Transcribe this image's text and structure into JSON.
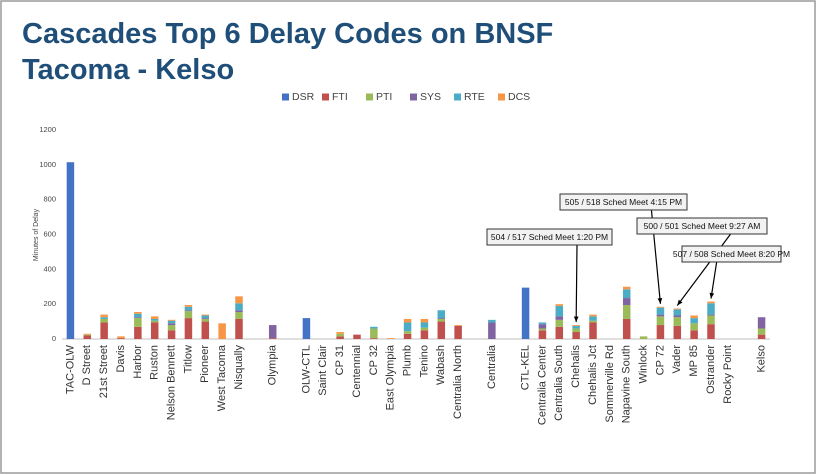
{
  "chart_data": {
    "type": "stacked_bar",
    "title": "Cascades Top 6 Delay Codes on BNSF",
    "subtitle": "Tacoma - Kelso",
    "y_axis_label": "Minutes of Delay",
    "categories": [
      "TAC-OLW",
      "D Street",
      "21st Street",
      "Davis",
      "Harbor",
      "Ruston",
      "Nelson Bennett",
      "Titlow",
      "Pioneer",
      "West Tacoma",
      "Nisqually",
      null,
      "Olympia",
      null,
      "OLW-CTL",
      "Saint Clair",
      "CP 31",
      "Centennial",
      "CP 32",
      "East Olympia",
      "Plumb",
      "Tenino",
      "Wabash",
      "Centralia North",
      null,
      "Centralia",
      null,
      "CTL-KEL",
      "Centralia Center",
      "Centralia South",
      "Chehalis",
      "Chehalis Jct",
      "Sommerville Rd",
      "Napavine South",
      "Winlock",
      "CP 72",
      "Vader",
      "MP 85",
      "Ostrander",
      "Rocky Point",
      null,
      "Kelso"
    ],
    "series": [
      {
        "name": "DSR",
        "color": "#4472c4",
        "values": [
          1015,
          0,
          0,
          0,
          0,
          0,
          0,
          0,
          0,
          0,
          0,
          null,
          0,
          null,
          120,
          0,
          0,
          0,
          0,
          0,
          0,
          0,
          0,
          0,
          null,
          0,
          null,
          295,
          0,
          0,
          0,
          0,
          0,
          0,
          0,
          0,
          0,
          0,
          0,
          0,
          null,
          0
        ]
      },
      {
        "name": "FTI",
        "color": "#c0504d",
        "values": [
          0,
          20,
          95,
          5,
          70,
          95,
          50,
          120,
          100,
          0,
          115,
          null,
          5,
          null,
          0,
          0,
          15,
          25,
          5,
          0,
          30,
          50,
          100,
          75,
          null,
          0,
          null,
          0,
          50,
          70,
          40,
          95,
          0,
          115,
          0,
          80,
          75,
          50,
          85,
          0,
          null,
          25
        ]
      },
      {
        "name": "PTI",
        "color": "#9bbb59",
        "values": [
          0,
          5,
          20,
          0,
          50,
          10,
          30,
          40,
          15,
          0,
          40,
          null,
          0,
          null,
          0,
          0,
          15,
          0,
          55,
          0,
          15,
          15,
          15,
          0,
          null,
          0,
          null,
          0,
          10,
          40,
          20,
          10,
          0,
          80,
          15,
          50,
          50,
          40,
          50,
          0,
          null,
          35
        ]
      },
      {
        "name": "SYS",
        "color": "#8064a2",
        "values": [
          0,
          0,
          0,
          0,
          5,
          0,
          10,
          5,
          5,
          0,
          10,
          null,
          75,
          null,
          0,
          0,
          0,
          0,
          0,
          0,
          0,
          0,
          5,
          0,
          null,
          95,
          null,
          0,
          25,
          20,
          0,
          0,
          0,
          40,
          0,
          10,
          10,
          0,
          5,
          0,
          null,
          65
        ]
      },
      {
        "name": "RTE",
        "color": "#4bacc6",
        "values": [
          0,
          0,
          10,
          0,
          20,
          10,
          15,
          20,
          15,
          0,
          40,
          null,
          0,
          null,
          0,
          0,
          0,
          0,
          10,
          0,
          50,
          30,
          45,
          0,
          null,
          15,
          null,
          0,
          10,
          60,
          15,
          25,
          0,
          50,
          0,
          40,
          35,
          30,
          65,
          0,
          null,
          0
        ]
      },
      {
        "name": "DCS",
        "color": "#f79646",
        "values": [
          0,
          5,
          15,
          10,
          10,
          15,
          5,
          10,
          5,
          90,
          40,
          null,
          0,
          null,
          0,
          0,
          10,
          0,
          0,
          5,
          20,
          20,
          0,
          5,
          null,
          0,
          null,
          0,
          0,
          10,
          5,
          10,
          0,
          15,
          0,
          5,
          5,
          15,
          10,
          0,
          null,
          0
        ]
      }
    ],
    "ylim": [
      0,
      1200
    ],
    "yticks": [
      0,
      200,
      400,
      600,
      800,
      1000,
      1200
    ],
    "grid": false,
    "legend": "top",
    "annotations": [
      {
        "text": "504 / 517 Sched Meet 1:20 PM",
        "category": "Chehalis"
      },
      {
        "text": "505 / 518 Sched Meet 4:15 PM",
        "category": "CP 72"
      },
      {
        "text": "500 / 501 Sched Meet 9:27 AM",
        "category": "Vader"
      },
      {
        "text": "507 / 508 Sched Meet 8:20 PM",
        "category": "Ostrander"
      }
    ]
  }
}
